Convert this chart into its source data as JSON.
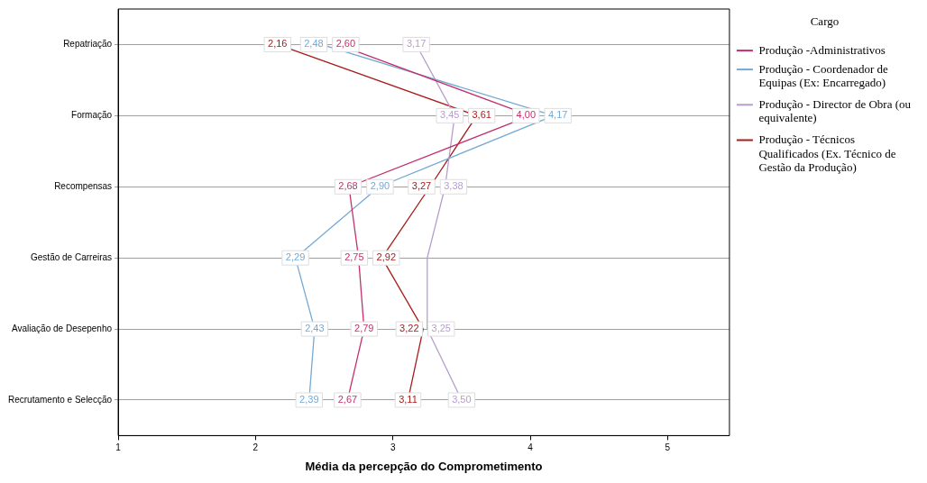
{
  "chart_data": {
    "type": "line",
    "orientation": "horizontal",
    "xlabel": "Média da percepção do Comprometimento",
    "legend_title": "Cargo",
    "legend": "right",
    "categories": [
      "Repatriação",
      "Formação",
      "Recompensas",
      "Gestão de Carreiras",
      "Avaliação de Desepenho",
      "Recrutamento e Selecção"
    ],
    "xlim": [
      1,
      5.45
    ],
    "xticks": [
      1,
      2,
      3,
      4,
      5
    ],
    "grid": "y",
    "line_style": "solid",
    "series": [
      {
        "name": "Produção -Administrativos",
        "color": "#c2306e",
        "values": [
          2.6,
          4.0,
          2.68,
          2.75,
          2.79,
          2.67
        ],
        "value_labels": [
          "2,60",
          "4,00",
          "2,68",
          "2,75",
          "2,79",
          "2,67"
        ]
      },
      {
        "name": "Produção - Coordenador de Equipas (Ex: Encarregado)",
        "color": "#74a9d4",
        "values": [
          2.48,
          4.17,
          2.9,
          2.29,
          2.43,
          2.39
        ],
        "value_labels": [
          "2,48",
          "4,17",
          "2,90",
          "2,29",
          "2,43",
          "2,39"
        ]
      },
      {
        "name": "Produção - Director de Obra (ou equivalente)",
        "color": "#b79dcf",
        "values": [
          3.17,
          3.45,
          3.38,
          3.25,
          3.25,
          3.5
        ],
        "value_labels": [
          "3,17",
          "3,45",
          "3,38",
          null,
          "3,25",
          "3,50"
        ]
      },
      {
        "name": "Produção - Técnicos Qualificados (Ex. Técnico de Gestão da Produção)",
        "color": "#a81c1c",
        "values": [
          2.16,
          3.61,
          3.27,
          2.92,
          3.22,
          3.11
        ],
        "value_labels": [
          "2,16",
          "3,61",
          "3,27",
          "2,92",
          "3,22",
          "3,11"
        ]
      }
    ]
  }
}
